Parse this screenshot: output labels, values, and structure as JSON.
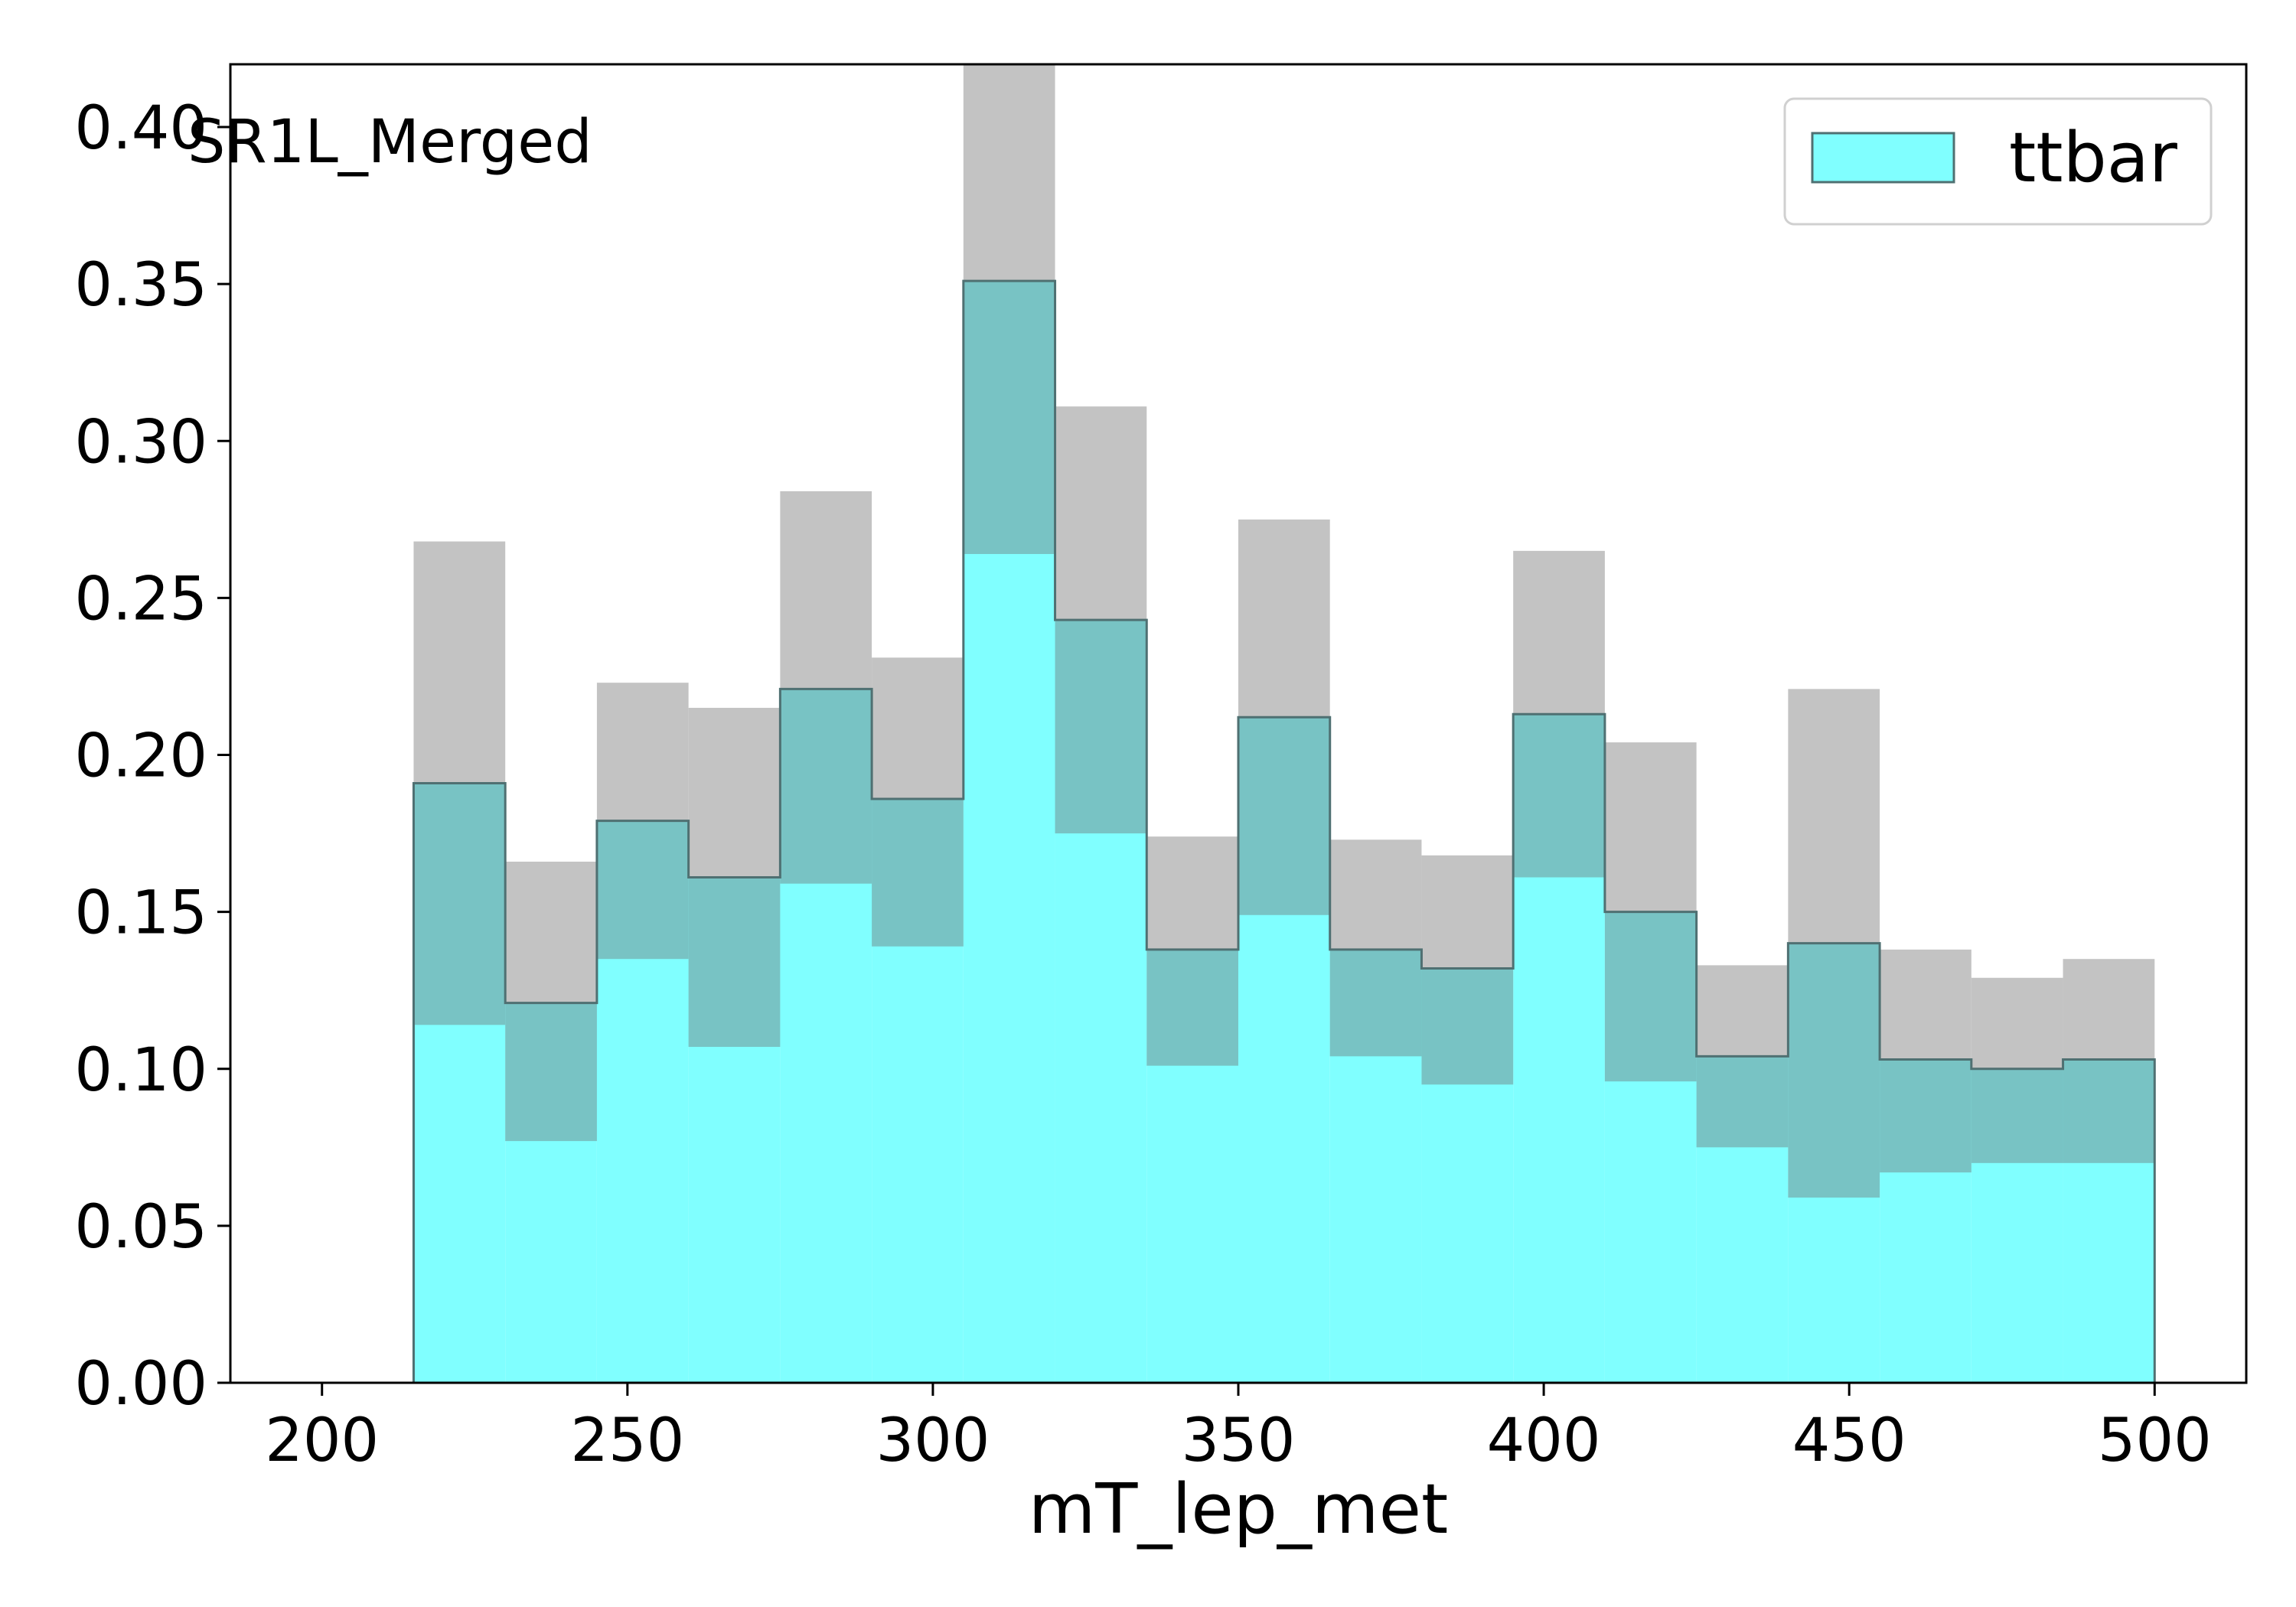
{
  "chart_data": {
    "type": "histogram",
    "region_label": "SR1L_Merged",
    "xlabel": "mT_lep_met",
    "ylabel": "",
    "xlim": [
      185,
      515
    ],
    "ylim": [
      0,
      0.42
    ],
    "x_ticks": [
      200,
      250,
      300,
      350,
      400,
      450,
      500
    ],
    "y_ticks": [
      0.0,
      0.05,
      0.1,
      0.15,
      0.2,
      0.25,
      0.3,
      0.35,
      0.4
    ],
    "y_tick_labels": [
      "0.00",
      "0.05",
      "0.10",
      "0.15",
      "0.20",
      "0.25",
      "0.30",
      "0.35",
      "0.40"
    ],
    "x_tick_labels": [
      "200",
      "250",
      "300",
      "350",
      "400",
      "450",
      "500"
    ],
    "bin_edges": [
      200,
      215,
      230,
      245,
      260,
      275,
      290,
      305,
      320,
      335,
      350,
      365,
      380,
      395,
      410,
      425,
      440,
      455,
      470,
      485,
      500
    ],
    "series": [
      {
        "name": "ttbar",
        "color": "#80ffff",
        "values": [
          0.0,
          0.191,
          0.121,
          0.179,
          0.161,
          0.221,
          0.186,
          0.351,
          0.243,
          0.138,
          0.212,
          0.138,
          0.132,
          0.213,
          0.15,
          0.104,
          0.14,
          0.103,
          0.1,
          0.103
        ],
        "uncertainty_low": [
          0.0,
          0.114,
          0.077,
          0.135,
          0.107,
          0.159,
          0.139,
          0.264,
          0.175,
          0.101,
          0.149,
          0.104,
          0.095,
          0.161,
          0.096,
          0.075,
          0.059,
          0.067,
          0.07,
          0.07
        ],
        "uncertainty_high": [
          0.0,
          0.268,
          0.166,
          0.223,
          0.215,
          0.284,
          0.231,
          0.44,
          0.311,
          0.174,
          0.275,
          0.173,
          0.168,
          0.265,
          0.204,
          0.133,
          0.221,
          0.138,
          0.129,
          0.135
        ]
      }
    ],
    "legend": {
      "position": "top-right",
      "entries": [
        "ttbar"
      ]
    },
    "colors": {
      "fill": "#80ffff",
      "step_line": "#4f7072",
      "band_over_fill": "#78c3c4",
      "band_over_white": "#c3c3c3"
    },
    "grid": false
  }
}
